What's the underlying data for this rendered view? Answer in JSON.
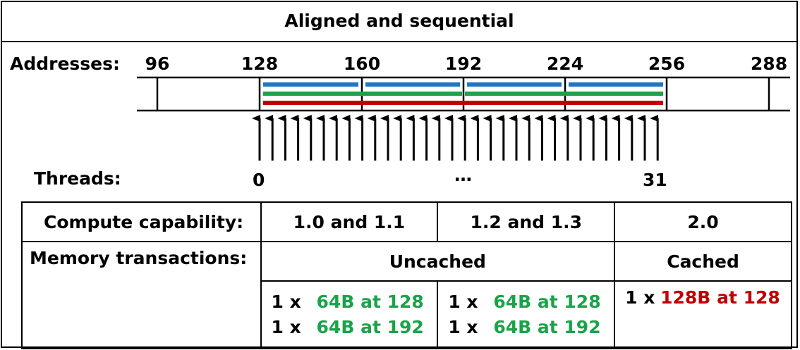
{
  "title": "Aligned and sequential",
  "addresses_label": "Addresses:",
  "addresses": [
    "96",
    "128",
    "160",
    "192",
    "224",
    "256",
    "288"
  ],
  "threads_label": "Threads:",
  "thread_first": "0",
  "thread_ellipsis": "…",
  "thread_last": "31",
  "colors": {
    "blue": "#1f77c4",
    "green": "#1aa34a",
    "red": "#c00000"
  },
  "table": {
    "row1": {
      "label": "Compute capability:",
      "c1": "1.0 and 1.1",
      "c2": "1.2 and 1.3",
      "c3": "2.0"
    },
    "row2": {
      "label": "Memory transactions:",
      "uncached": "Uncached",
      "cached": "Cached"
    },
    "row3": {
      "c1": [
        {
          "mult": "1 x",
          "text": "64B at 128"
        },
        {
          "mult": "1 x",
          "text": "64B at 192"
        }
      ],
      "c2": [
        {
          "mult": "1 x",
          "text": "64B at 128"
        },
        {
          "mult": "1 x",
          "text": "64B at 192"
        }
      ],
      "c3": [
        {
          "mult": "1 x",
          "text": "128B at 128"
        }
      ]
    }
  }
}
